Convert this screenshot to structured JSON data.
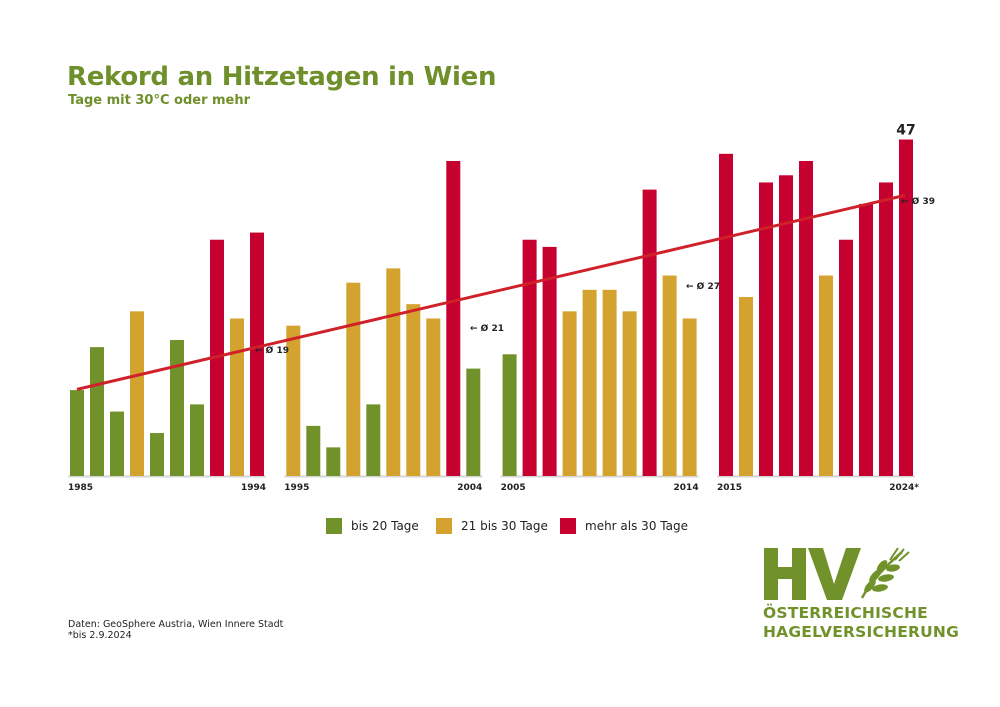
{
  "title": "Rekord an Hitzetagen in Wien",
  "subtitle": "Tage mit 30°C oder mehr",
  "chart_data": {
    "type": "bar",
    "years": [
      1985,
      1986,
      1987,
      1988,
      1989,
      1990,
      1991,
      1992,
      1993,
      1994,
      1995,
      1996,
      1997,
      1998,
      1999,
      2000,
      2001,
      2002,
      2003,
      2004,
      2005,
      2006,
      2007,
      2008,
      2009,
      2010,
      2011,
      2012,
      2013,
      2014,
      2015,
      2016,
      2017,
      2018,
      2019,
      2020,
      2021,
      2022,
      2023,
      2024
    ],
    "values": [
      12,
      18,
      9,
      23,
      6,
      19,
      10,
      33,
      22,
      34,
      21,
      7,
      4,
      27,
      10,
      29,
      24,
      22,
      44,
      15,
      17,
      33,
      32,
      23,
      26,
      26,
      23,
      40,
      28,
      22,
      45,
      25,
      41,
      42,
      44,
      28,
      33,
      38,
      41,
      47
    ],
    "tick_labels": [
      "1985",
      "1994",
      "1995",
      "2004",
      "2005",
      "2014",
      "2015",
      "2024*"
    ],
    "max_label": "47",
    "ylim": [
      0,
      47
    ],
    "grid": false,
    "categories_rule": {
      "green_max": 20,
      "gold_max": 30
    },
    "colors": {
      "bis20": "#71922a",
      "bis30": "#d4a22f",
      "mehr30": "#c6002f",
      "trend": "#d0202a",
      "title": "#6f8f2a"
    },
    "trend": {
      "type": "linear",
      "start_year": 1985,
      "start_value": 12.1,
      "end_year": 2024,
      "end_value": 39.2
    },
    "decade_averages": [
      {
        "label": "Ø 19",
        "value": 19
      },
      {
        "label": "Ø 21",
        "value": 21
      },
      {
        "label": "Ø 27",
        "value": 27
      },
      {
        "label": "Ø 39",
        "value": 39
      }
    ],
    "legend": [
      "bis 20 Tage",
      "21 bis 30 Tage",
      "mehr als 30 Tage"
    ],
    "legend_position": "bottom-center"
  },
  "footnotes": [
    "Daten: GeoSphere Austria, Wien Innere Stadt",
    "*bis 2.9.2024"
  ],
  "logo": {
    "mark": "HV",
    "line1": "ÖSTERREICHISCHE",
    "line2": "HAGELVERSICHERUNG",
    "icon": "wheat-ear-icon"
  }
}
